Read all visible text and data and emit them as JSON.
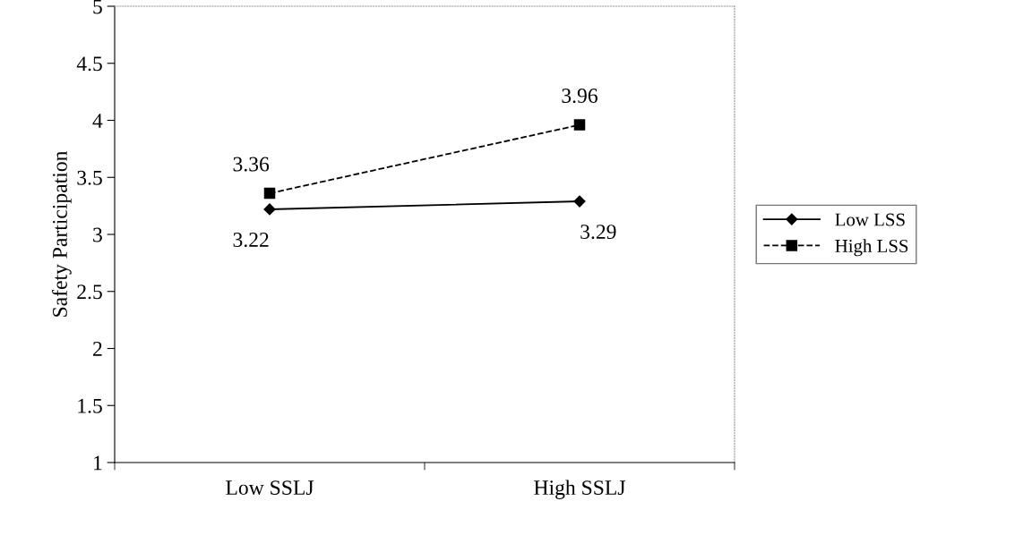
{
  "chart_data": {
    "type": "line",
    "ylabel": "Safety Participation",
    "categories": [
      "Low SSLJ",
      "High SSLJ"
    ],
    "series": [
      {
        "name": "Low LSS",
        "color": "#000000",
        "values": [
          3.22,
          3.29
        ],
        "marker": "diamond",
        "line_style": "solid"
      },
      {
        "name": "High LSS",
        "color": "#000000",
        "values": [
          3.36,
          3.96
        ],
        "marker": "square",
        "line_style": "dashed"
      }
    ],
    "ylim": [
      1,
      5
    ],
    "yticks": [
      1,
      1.5,
      2,
      2.5,
      3,
      3.5,
      4,
      4.5,
      5
    ],
    "data_labels": true,
    "grid": false,
    "legend": "right"
  }
}
